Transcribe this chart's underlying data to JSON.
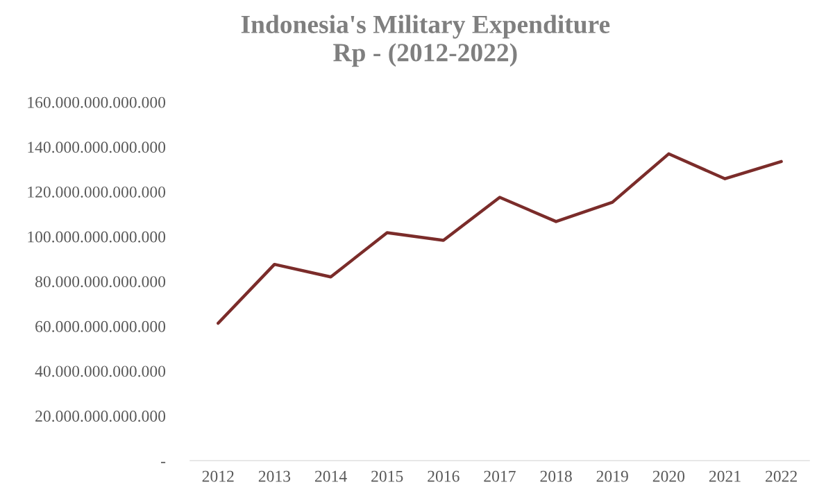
{
  "chart_data": {
    "type": "line",
    "title": "Indonesia's Military Expenditure\nRp - (2012-2022)",
    "categories": [
      "2012",
      "2013",
      "2014",
      "2015",
      "2016",
      "2017",
      "2018",
      "2019",
      "2020",
      "2021",
      "2022"
    ],
    "series": [
      {
        "color": "#7b2c2a",
        "values": [
          61300000000000,
          87600000000000,
          82000000000000,
          101700000000000,
          98300000000000,
          117500000000000,
          106700000000000,
          115300000000000,
          136900000000000,
          125800000000000,
          133500000000000
        ]
      }
    ],
    "ylim": [
      0,
      160000000000000
    ],
    "yticks": [
      {
        "value": 0,
        "label": "-"
      },
      {
        "value": 20000000000000,
        "label": "20.000.000.000.000"
      },
      {
        "value": 40000000000000,
        "label": "40.000.000.000.000"
      },
      {
        "value": 60000000000000,
        "label": "60.000.000.000.000"
      },
      {
        "value": 80000000000000,
        "label": "80.000.000.000.000"
      },
      {
        "value": 100000000000000,
        "label": "100.000.000.000.000"
      },
      {
        "value": 120000000000000,
        "label": "120.000.000.000.000"
      },
      {
        "value": 140000000000000,
        "label": "140.000.000.000.000"
      },
      {
        "value": 160000000000000,
        "label": "160.000.000.000.000"
      }
    ],
    "grid": false,
    "legend": false,
    "marker": "none",
    "line_style": "solid"
  }
}
